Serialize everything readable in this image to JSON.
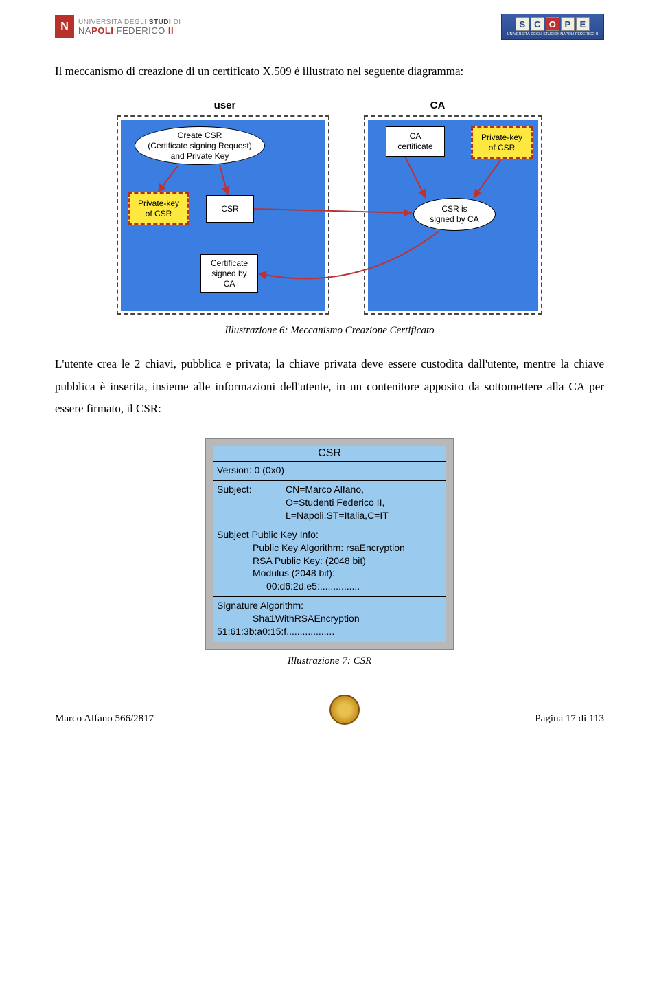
{
  "header": {
    "uni_top_light": "UNIVERSITA",
    "uni_top_light2": "DEGLI",
    "uni_top_bold": "STUDI",
    "uni_top_light3": "DI",
    "uni_bot_light": "NA",
    "uni_bot_bold": "POLI",
    "uni_bot_light2": "FEDERICO",
    "uni_bot_bold2": "II",
    "scope_letters": [
      "S",
      "C",
      "O",
      "P",
      "E"
    ],
    "scope_sub": "UNIVERSITÀ DEGLI STUDI DI NAPOLI FEDERICO II"
  },
  "para1": "Il meccanismo di creazione di un certificato X.509 è illustrato nel seguente diagramma:",
  "diagram1": {
    "label_user": "user",
    "label_ca": "CA",
    "user": {
      "create_csr": "Create CSR\n(Certificate signing Request)\nand Private Key",
      "priv_key": "Private-key\nof CSR",
      "csr": "CSR",
      "cert_signed": "Certificate\nsigned by\nCA"
    },
    "ca": {
      "ca_cert": "CA\ncertificate",
      "priv_key": "Private-key\nof CSR",
      "csr_signed": "CSR is\nsigned by CA"
    },
    "caption": "Illustrazione 6: Meccanismo Creazione Certificato",
    "colors": {
      "panel_bg": "#3b7de0",
      "yellow_fill": "#fde840",
      "yellow_dash": "#b03030"
    }
  },
  "para2": "L'utente crea le 2 chiavi, pubblica e privata; la chiave privata deve essere custodita dall'utente, mentre la chiave pubblica è inserita, insieme alle informazioni dell'utente, in un contenitore apposito da sottomettere alla CA per essere firmato, il CSR:",
  "csr": {
    "title": "CSR",
    "version": "Version: 0 (0x0)",
    "subject_label": "Subject:",
    "subject_lines": [
      "CN=Marco Alfano,",
      "O=Studenti Federico II,",
      "L=Napoli,ST=Italia,C=IT"
    ],
    "spki_label": "Subject Public Key Info:",
    "spki_lines": [
      "Public Key Algorithm: rsaEncryption",
      "RSA Public Key: (2048 bit)",
      "Modulus (2048 bit):",
      "    00:d6:2d:e5:..............."
    ],
    "sig_label": "Signature Algorithm:",
    "sig_alg": "Sha1WithRSAEncryption",
    "sig_val": "51:61:3b:a0:15:f..................",
    "caption": "Illustrazione 7: CSR",
    "colors": {
      "bg": "#9bcaef",
      "border": "#b8b8b8"
    }
  },
  "footer": {
    "left": "Marco Alfano 566/2817",
    "right": "Pagina 17 di 113"
  }
}
